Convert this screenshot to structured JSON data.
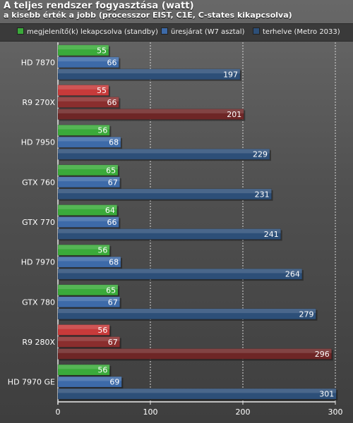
{
  "chart_data": {
    "type": "bar",
    "orientation": "horizontal",
    "title": "A teljes rendszer fogyasztása (watt)",
    "subtitle": "a kisebb érték a jobb (processzor EIST, C1E, C-states kikapcsolva)",
    "categories": [
      "HD 7870",
      "R9 270X",
      "HD 7950",
      "GTX 760",
      "GTX 770",
      "HD 7970",
      "GTX 780",
      "R9 280X",
      "HD 7970 GE"
    ],
    "highlighted_categories": [
      "R9 270X",
      "R9 280X"
    ],
    "series": [
      {
        "name": "megjelenítő(k) lekapcsolva (standby)",
        "values": [
          55,
          55,
          56,
          65,
          64,
          56,
          65,
          56,
          56
        ]
      },
      {
        "name": "üresjárat (W7 asztal)",
        "values": [
          66,
          66,
          68,
          67,
          66,
          68,
          67,
          67,
          69
        ]
      },
      {
        "name": "terhelve (Metro 2033)",
        "values": [
          197,
          201,
          229,
          231,
          241,
          264,
          279,
          296,
          301
        ]
      }
    ],
    "xlim": [
      0,
      300
    ],
    "xticks": [
      0,
      100,
      200,
      300
    ],
    "grid": true,
    "legend_position": "top",
    "colors": {
      "standby": "#3aaa3a",
      "idle": "#3d6aa8",
      "load": "#2d4f78",
      "highlight_standby": "#c83a3a",
      "highlight_idle": "#8a2e2e",
      "highlight_load": "#6e2626",
      "grid": "#d8d8d8"
    }
  }
}
